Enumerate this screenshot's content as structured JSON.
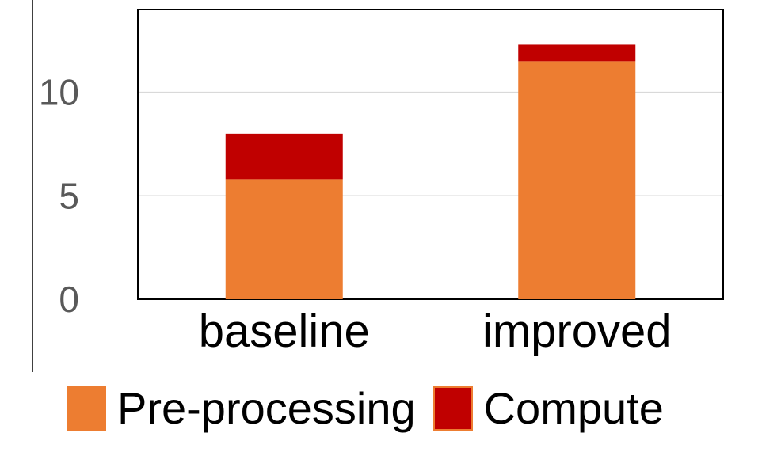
{
  "chart_data": {
    "type": "bar",
    "stacked": true,
    "categories": [
      "baseline",
      "improved"
    ],
    "series": [
      {
        "name": "Pre-processing",
        "values": [
          5.8,
          11.5
        ],
        "color": "#ED7D31"
      },
      {
        "name": "Compute",
        "values": [
          2.2,
          0.8
        ],
        "color": "#C00000"
      }
    ],
    "ylim": [
      0,
      14
    ],
    "yticks": [
      0,
      5,
      10
    ],
    "ytick_labels": [
      "0",
      "5",
      "10"
    ],
    "grid": true,
    "legend_position": "bottom"
  }
}
